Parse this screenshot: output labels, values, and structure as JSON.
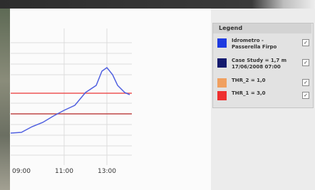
{
  "chart": {
    "x_labels": [
      "09:00",
      "11:00",
      "13:00"
    ]
  },
  "legend": {
    "title": "Legend",
    "items": [
      {
        "lines": [
          "Idrometro -",
          "Passerella Firpo"
        ],
        "color": "#1f3be0"
      },
      {
        "lines": [
          "Case Study = 1,7 m",
          "17/06/2008 07:00"
        ],
        "color": "#141a6e"
      },
      {
        "lines": [
          "THR_2 = 1,0"
        ],
        "color": "#f0a060"
      },
      {
        "lines": [
          "THR_1 = 3,0"
        ],
        "color": "#ee3030"
      }
    ]
  }
}
